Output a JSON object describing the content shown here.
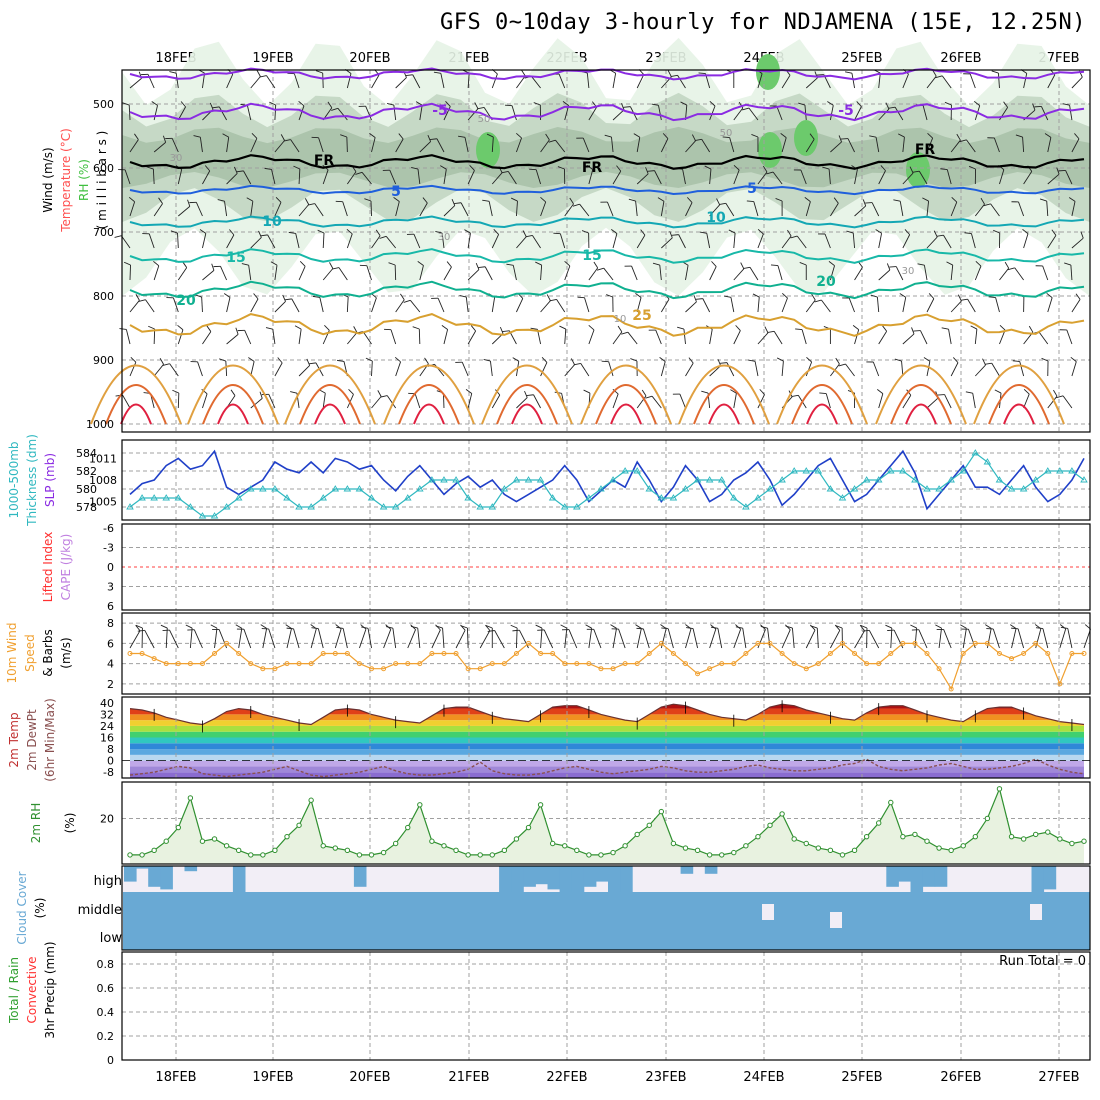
{
  "title": "GFS 0~10day 3-hourly for NDJAMENA (15E, 12.25N)",
  "dates": [
    "18FEB",
    "19FEB",
    "20FEB",
    "21FEB",
    "22FEB",
    "23FEB",
    "24FEB",
    "25FEB",
    "26FEB",
    "27FEB"
  ],
  "colors": {
    "grid": "#a0a0a0",
    "rh_light": "#e6f3e6",
    "rh_mid": "#c2d6c2",
    "rh_dark": "#a9c1a9",
    "rh_green": "#6cca6c",
    "isotherm_purple": "#8a2be2",
    "isotherm_blue": "#1f5fdc",
    "isotherm_teal": "#14a7b4",
    "slp": "#2040c8",
    "thickness": "#30b8c0",
    "wind10": "#f0a030",
    "dewpt": "#8a5050",
    "rh2m": "#309030",
    "cloud": "#69a9d4",
    "cloud_bg": "#f2eef6"
  },
  "panels": {
    "upper": {
      "ylabels": [
        {
          "text": "Wind (m/s)",
          "color": "#000000"
        },
        {
          "text": "Temperature (°C)",
          "color": "#ff5050"
        },
        {
          "text": "RH (%)",
          "color": "#3fbf3f"
        },
        {
          "text": "( m i l l i b a r s )",
          "color": "#000000"
        }
      ],
      "yticks": [
        "500",
        "600",
        "700",
        "800",
        "900",
        "1000"
      ],
      "isotherm_labels": [
        "-5",
        "-5",
        "FR",
        "FR",
        "FR",
        "5",
        "5",
        "10",
        "10",
        "15",
        "15",
        "20",
        "20",
        "25"
      ],
      "rh_labels": [
        "30",
        "50",
        "50",
        "30",
        "30",
        "10"
      ]
    },
    "slp": {
      "ylabels": [
        {
          "text": "1000-500mb",
          "color": "#30b8c0"
        },
        {
          "text": "Thickness (dm)",
          "color": "#30b8c0"
        },
        {
          "text": "SLP (mb)",
          "color": "#8a2be2"
        }
      ],
      "yticks_left": [
        "584",
        "582",
        "580",
        "578"
      ],
      "yticks_right": [
        "1011",
        "1008",
        "1005"
      ]
    },
    "cape": {
      "ylabels": [
        {
          "text": "Lifted Index",
          "color": "#ff3030"
        },
        {
          "text": "CAPE (J/kg)",
          "color": "#c080e0"
        }
      ],
      "yticks": [
        "-6",
        "-3",
        "0",
        "3",
        "6"
      ]
    },
    "wind10": {
      "ylabels": [
        {
          "text": "10m Wind",
          "color": "#f0a030"
        },
        {
          "text": "Speed",
          "color": "#f0a030"
        },
        {
          "text": "& Barbs",
          "color": "#000000"
        },
        {
          "text": "(m/s)",
          "color": "#000000"
        }
      ],
      "yticks": [
        "8",
        "6",
        "4",
        "2"
      ]
    },
    "temp": {
      "ylabels": [
        {
          "text": "2m Temp",
          "color": "#c03030"
        },
        {
          "text": "2m DewPt",
          "color": "#8a5050"
        },
        {
          "text": "(6hr Min/Max)",
          "color": "#8a5050"
        }
      ],
      "yticks": [
        "40",
        "32",
        "24",
        "16",
        "8",
        "0",
        "-8"
      ]
    },
    "rh2m": {
      "ylabels": [
        {
          "text": "2m RH",
          "color": "#309030"
        },
        {
          "text": "(%)",
          "color": "#000000"
        }
      ],
      "yticks": [
        "20"
      ]
    },
    "cloud": {
      "ylabels": [
        {
          "text": "Cloud Cover",
          "color": "#69a9d4"
        },
        {
          "text": "(%)",
          "color": "#000000"
        }
      ],
      "levels": [
        "high",
        "middle",
        "low"
      ]
    },
    "precip": {
      "ylabels": [
        {
          "text": "Total / Rain",
          "color": "#30a030"
        },
        {
          "text": "Convective",
          "color": "#ff3030"
        },
        {
          "text": "3hr Precip (mm)",
          "color": "#000000"
        }
      ],
      "yticks": [
        "0.8",
        "0.6",
        "0.4",
        "0.2",
        "0"
      ],
      "run_total": "Run Total = 0"
    }
  },
  "chart_data": [
    {
      "type": "line",
      "panel": "slp",
      "series": [
        {
          "name": "SLP (mb)",
          "values": [
            1006,
            1007.5,
            1008,
            1010,
            1011,
            1009.5,
            1010,
            1012,
            1007,
            1006,
            1007,
            1008,
            1010.5,
            1009.5,
            1009,
            1010.5,
            1009,
            1011,
            1010.5,
            1009.5,
            1010,
            1008,
            1006.5,
            1008.5,
            1010,
            1008,
            1006,
            1007.5,
            1008.5,
            1007,
            1008,
            1006,
            1005,
            1006,
            1007,
            1008,
            1010,
            1008,
            1005,
            1006.5,
            1008,
            1007,
            1010.5,
            1008,
            1005,
            1007,
            1010,
            1008,
            1005,
            1006,
            1008,
            1009,
            1010.5,
            1008,
            1004.5,
            1006,
            1008,
            1010,
            1011,
            1008,
            1005,
            1006,
            1008,
            1010,
            1012,
            1009,
            1004,
            1006,
            1008,
            1010,
            1007,
            1007,
            1006,
            1008,
            1010,
            1007,
            1005,
            1006,
            1008,
            1011
          ]
        },
        {
          "name": "1000-500mb Thickness (dm)",
          "values": [
            578,
            579,
            579,
            579,
            579,
            578,
            577,
            577,
            578,
            579,
            580,
            580,
            580,
            579,
            578,
            578,
            579,
            580,
            580,
            580,
            579,
            578,
            578,
            579,
            580,
            581,
            581,
            581,
            579,
            578,
            578,
            580,
            581,
            581,
            581,
            579,
            578,
            578,
            579,
            580,
            581,
            582,
            582,
            580,
            579,
            579,
            580,
            581,
            581,
            581,
            579,
            578,
            579,
            580,
            581,
            582,
            582,
            582,
            580,
            579,
            580,
            581,
            581,
            582,
            582,
            581,
            580,
            580,
            581,
            582,
            584,
            583,
            581,
            580,
            580,
            581,
            582,
            582,
            582,
            581
          ]
        }
      ],
      "ylim_left": [
        577,
        585
      ],
      "ylim_right": [
        1003,
        1013
      ]
    },
    {
      "type": "line",
      "panel": "cape",
      "series": [
        {
          "name": "Lifted Index",
          "values": [
            0
          ]
        }
      ],
      "ylim": [
        -6,
        6
      ],
      "reference_line": 0
    },
    {
      "type": "line",
      "panel": "wind10",
      "series": [
        {
          "name": "10m Wind Speed (m/s)",
          "values": [
            5,
            5,
            4.5,
            4,
            4,
            4,
            4,
            5,
            6,
            5,
            4,
            3.5,
            3.5,
            4,
            4,
            4,
            5,
            5,
            5,
            4,
            3.5,
            3.5,
            4,
            4,
            4,
            5,
            5,
            5,
            3.5,
            3.5,
            4,
            4,
            5,
            6,
            5,
            5,
            4,
            4,
            4,
            3.5,
            3.5,
            4,
            4,
            5,
            6,
            5,
            4,
            3,
            3.5,
            4,
            4,
            5,
            6,
            6,
            5,
            4,
            3.5,
            4,
            5,
            6,
            5,
            4,
            4,
            5,
            6,
            6,
            5,
            3.5,
            1.5,
            5,
            6,
            6,
            5,
            4.5,
            5,
            6,
            5,
            2,
            5,
            5
          ]
        }
      ],
      "ylim": [
        1,
        9
      ]
    },
    {
      "type": "area",
      "panel": "temp",
      "series": [
        {
          "name": "2m Temp",
          "values": [
            36,
            35,
            33,
            30,
            28,
            26,
            25,
            29,
            34,
            36,
            35,
            32,
            30,
            28,
            26,
            25,
            30,
            35,
            36,
            35,
            32,
            30,
            28,
            27,
            26,
            31,
            36,
            37,
            37,
            34,
            31,
            29,
            28,
            27,
            32,
            37,
            38,
            38,
            35,
            32,
            30,
            28,
            27,
            32,
            37,
            39,
            38,
            35,
            32,
            30,
            29,
            28,
            32,
            37,
            39,
            38,
            35,
            33,
            31,
            29,
            28,
            33,
            37,
            38,
            38,
            35,
            32,
            30,
            28,
            27,
            32,
            36,
            37,
            37,
            34,
            31,
            29,
            27,
            26,
            25
          ]
        },
        {
          "name": "2m DewPt",
          "values": [
            -10,
            -9,
            -8,
            -6,
            -4,
            -5,
            -9,
            -10,
            -11,
            -10,
            -9,
            -8,
            -6,
            -4,
            -7,
            -10,
            -11,
            -10,
            -9,
            -8,
            -6,
            -4,
            -7,
            -9,
            -10,
            -10,
            -9,
            -8,
            -6,
            -1,
            -7,
            -9,
            -10,
            -10,
            -9,
            -7,
            -5,
            -4,
            -6,
            -8,
            -9,
            -8,
            -7,
            -6,
            -4,
            -5,
            -7,
            -8,
            -8,
            -7,
            -6,
            -4,
            -3,
            -5,
            -6,
            -7,
            -7,
            -6,
            -5,
            -3,
            -2,
            1,
            -4,
            -6,
            -7,
            -6,
            -5,
            -3,
            -2,
            -4,
            -6,
            -6,
            -5,
            -4,
            -2,
            1,
            -3,
            -6,
            -8,
            -9
          ]
        }
      ],
      "ylim": [
        -12,
        44
      ]
    },
    {
      "type": "area",
      "panel": "rh2m",
      "series": [
        {
          "name": "2m RH (%)",
          "values": [
            4,
            4,
            6,
            10,
            16,
            29,
            10,
            11,
            8,
            6,
            4,
            4,
            6,
            12,
            17,
            28,
            8,
            7,
            6,
            4,
            4,
            5,
            9,
            16,
            26,
            10,
            8,
            6,
            4,
            4,
            4,
            6,
            11,
            16,
            26,
            9,
            8,
            6,
            4,
            4,
            5,
            8,
            13,
            17,
            23,
            9,
            7,
            6,
            4,
            4,
            5,
            8,
            12,
            17,
            22,
            11,
            9,
            7,
            6,
            4,
            6,
            12,
            18,
            27,
            12,
            13,
            10,
            7,
            6,
            8,
            12,
            20,
            33,
            12,
            11,
            13,
            14,
            11,
            9,
            10
          ]
        }
      ],
      "ylim": [
        0,
        36
      ]
    },
    {
      "type": "bar",
      "panel": "cloud",
      "series": [
        {
          "name": "high",
          "values": [
            60,
            10,
            80,
            90,
            0,
            20,
            0,
            0,
            0,
            100,
            0,
            0,
            0,
            0,
            0,
            0,
            0,
            0,
            0,
            80,
            0,
            0,
            0,
            0,
            0,
            0,
            0,
            0,
            0,
            0,
            0,
            100,
            100,
            80,
            70,
            90,
            100,
            100,
            80,
            60,
            100,
            100,
            0,
            0,
            0,
            0,
            30,
            0,
            30,
            0,
            0,
            0,
            0,
            0,
            0,
            0,
            0,
            0,
            0,
            0,
            0,
            0,
            0,
            80,
            60,
            100,
            80,
            80,
            0,
            0,
            0,
            0,
            0,
            0,
            0,
            100,
            90,
            0,
            0,
            0
          ]
        },
        {
          "name": "middle",
          "values": [
            0
          ]
        },
        {
          "name": "low",
          "values": [
            100
          ]
        }
      ],
      "ylim": [
        0,
        100
      ]
    },
    {
      "type": "bar",
      "panel": "precip",
      "series": [
        {
          "name": "3hr Precip (mm)",
          "values": [
            0
          ]
        }
      ],
      "ylim": [
        0,
        0.9
      ]
    }
  ]
}
